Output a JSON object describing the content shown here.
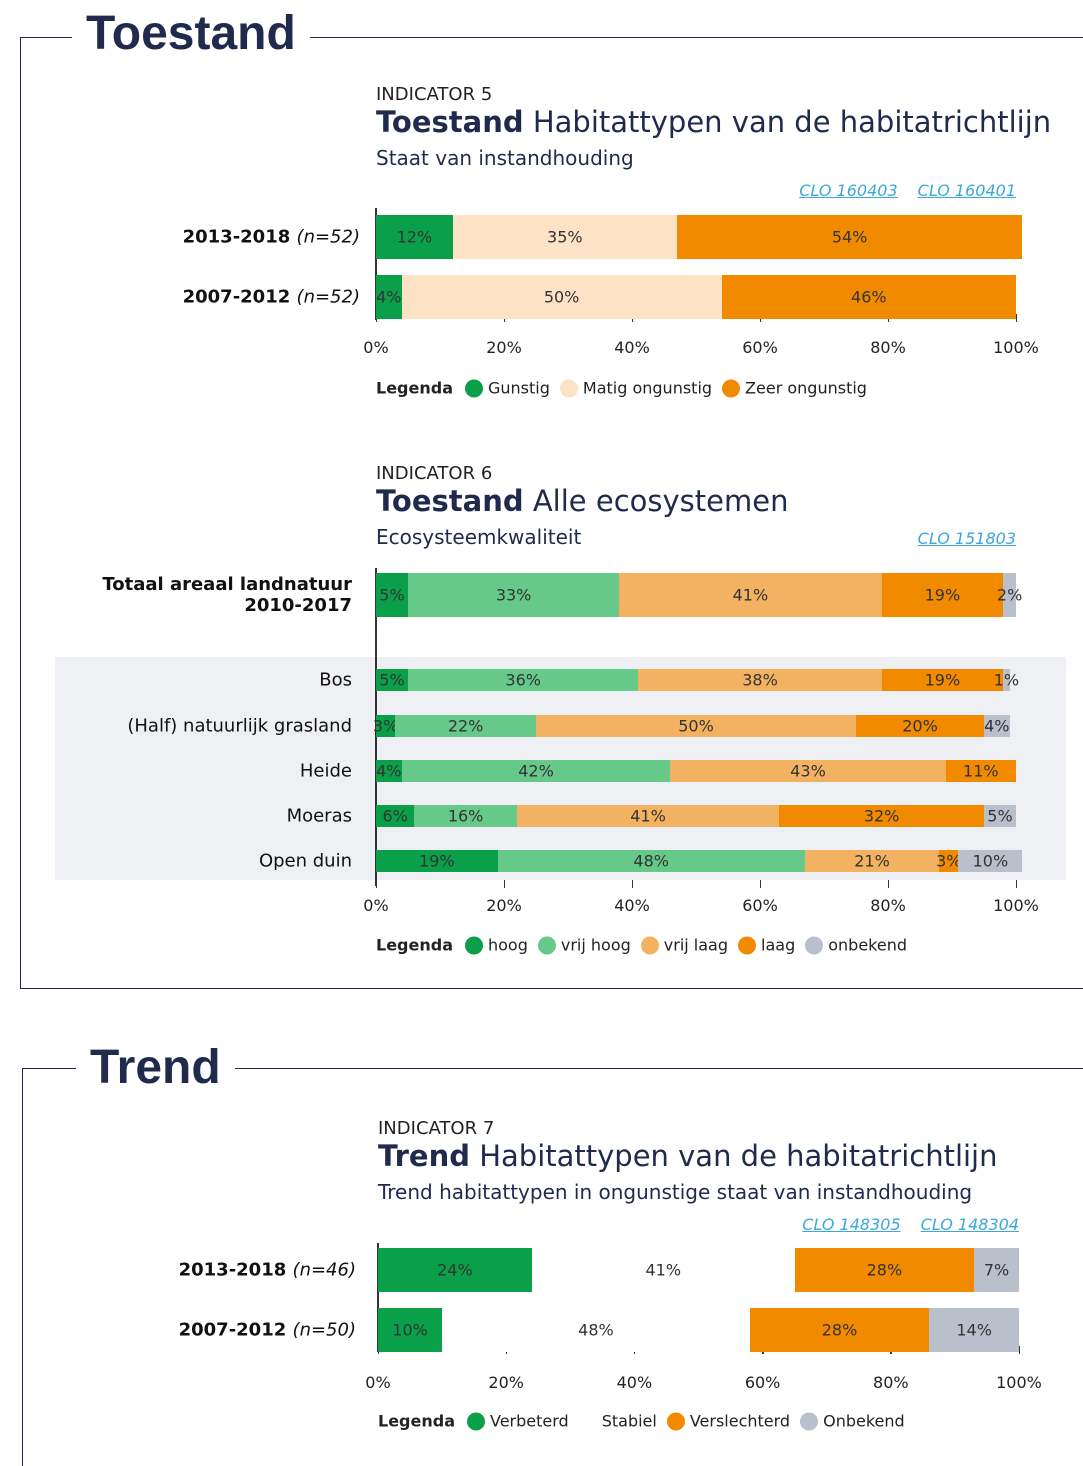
{
  "sections": [
    {
      "heading": "Toestand"
    },
    {
      "heading": "Trend"
    }
  ],
  "chart_data": [
    {
      "type": "stacked_barh",
      "indicator": "INDICATOR 5",
      "title_bold": "Toestand",
      "title": "Habitattypen van de habitatrichtlijn",
      "subtitle": "Staat van instandhouding",
      "links": [
        "CLO 160403",
        "CLO 160401"
      ],
      "categories": [
        "2013-2018",
        "2007-2012"
      ],
      "category_notes": [
        "(n=52)",
        "(n=52)"
      ],
      "series": [
        {
          "name": "Gunstig",
          "color": "#0aa04a",
          "values": [
            12,
            4
          ],
          "value_labels": [
            "12%",
            "4%"
          ]
        },
        {
          "name": "Matig ongunstig",
          "color": "#fde2c6",
          "values": [
            35,
            50
          ],
          "value_labels": [
            "35%",
            "50%"
          ]
        },
        {
          "name": "Zeer ongunstig",
          "color": "#f28a00",
          "values": [
            54,
            46
          ],
          "value_labels": [
            "54%",
            "46%"
          ]
        }
      ],
      "xlim": [
        0,
        100
      ],
      "xticks": [
        {
          "value": 0,
          "label": "0%"
        },
        {
          "value": 20,
          "label": "20%"
        },
        {
          "value": 40,
          "label": "40%"
        },
        {
          "value": 60,
          "label": "60%"
        },
        {
          "value": 80,
          "label": "80%"
        },
        {
          "value": 100,
          "label": "100%"
        }
      ],
      "legend_title": "Legenda"
    },
    {
      "type": "stacked_barh",
      "indicator": "INDICATOR 6",
      "title_bold": "Toestand",
      "title": "Alle ecosystemen",
      "subtitle": "Ecosysteemkwaliteit",
      "links": [
        "CLO 151803"
      ],
      "categories": [
        "Totaal areaal landnatuur 2010-2017",
        "Bos",
        "(Half) natuurlijk grasland",
        "Heide",
        "Moeras",
        "Open duin"
      ],
      "series": [
        {
          "name": "hoog",
          "color": "#0aa04a",
          "values": [
            5,
            5,
            3,
            4,
            6,
            19
          ],
          "value_labels": [
            "5%",
            "5%",
            "3%",
            "4%",
            "6%",
            "19%"
          ]
        },
        {
          "name": "vrij hoog",
          "color": "#66c98a",
          "values": [
            33,
            36,
            22,
            42,
            16,
            48
          ],
          "value_labels": [
            "33%",
            "36%",
            "22%",
            "42%",
            "16%",
            "48%"
          ]
        },
        {
          "name": "vrij laag",
          "color": "#f2b262",
          "values": [
            41,
            38,
            50,
            43,
            41,
            21
          ],
          "value_labels": [
            "41%",
            "38%",
            "50%",
            "43%",
            "41%",
            "21%"
          ]
        },
        {
          "name": "laag",
          "color": "#f28a00",
          "values": [
            19,
            19,
            20,
            11,
            32,
            3
          ],
          "value_labels": [
            "19%",
            "19%",
            "20%",
            "11%",
            "32%",
            "3%"
          ]
        },
        {
          "name": "onbekend",
          "color": "#babfcc",
          "values": [
            2,
            1,
            4,
            null,
            5,
            10
          ],
          "value_labels": [
            "2%",
            "1%",
            "4%",
            null,
            "5%",
            "10%"
          ]
        }
      ],
      "xlim": [
        0,
        100
      ],
      "xticks": [
        {
          "value": 0,
          "label": "0%"
        },
        {
          "value": 20,
          "label": "20%"
        },
        {
          "value": 40,
          "label": "40%"
        },
        {
          "value": 60,
          "label": "60%"
        },
        {
          "value": 80,
          "label": "80%"
        },
        {
          "value": 100,
          "label": "100%"
        }
      ],
      "legend_title": "Legenda"
    },
    {
      "type": "stacked_barh",
      "indicator": "INDICATOR 7",
      "title_bold": "Trend",
      "title": "Habitattypen van de habitatrichtlijn",
      "subtitle": "Trend habitattypen in ongunstige staat van instandhouding",
      "links": [
        "CLO 148305",
        "CLO 148304"
      ],
      "categories": [
        "2013-2018",
        "2007-2012"
      ],
      "category_notes": [
        "(n=46)",
        "(n=50)"
      ],
      "series": [
        {
          "name": "Verbeterd",
          "color": "#0aa04a",
          "values": [
            24,
            10
          ],
          "value_labels": [
            "24%",
            "10%"
          ]
        },
        {
          "name": "Stabiel",
          "color": "#ffffff",
          "values": [
            41,
            48
          ],
          "value_labels": [
            "41%",
            "48%"
          ]
        },
        {
          "name": "Verslechterd",
          "color": "#f28a00",
          "values": [
            28,
            28
          ],
          "value_labels": [
            "28%",
            "28%"
          ]
        },
        {
          "name": "Onbekend",
          "color": "#babfcc",
          "values": [
            7,
            14
          ],
          "value_labels": [
            "7%",
            "14%"
          ]
        }
      ],
      "xlim": [
        0,
        100
      ],
      "xticks": [
        {
          "value": 0,
          "label": "0%"
        },
        {
          "value": 20,
          "label": "20%"
        },
        {
          "value": 40,
          "label": "40%"
        },
        {
          "value": 60,
          "label": "60%"
        },
        {
          "value": 80,
          "label": "80%"
        },
        {
          "value": 100,
          "label": "100%"
        }
      ],
      "legend_title": "Legenda"
    }
  ]
}
